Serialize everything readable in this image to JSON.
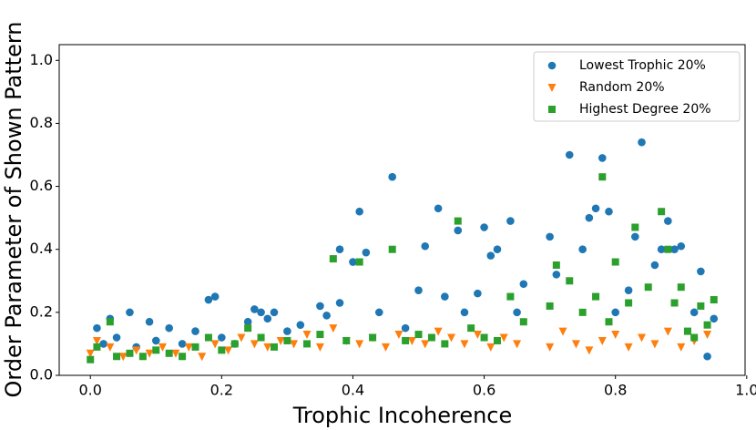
{
  "chart_data": {
    "type": "scatter",
    "x_label": "Trophic Incoherence",
    "y_label": "Order Parameter of Shown Pattern",
    "xlim": [
      -0.0475,
      0.9975
    ],
    "ylim": [
      0,
      1.05
    ],
    "xticks": [
      {
        "value": 0,
        "label": "0.0"
      },
      0.2,
      0.4,
      0.6,
      0.8,
      {
        "value": 1,
        "label": "1.0"
      }
    ],
    "yticks": [
      {
        "value": 0,
        "label": "0.0"
      },
      0.2,
      0.4,
      0.6,
      0.8,
      {
        "value": 1,
        "label": "1.0"
      }
    ],
    "grid": false,
    "legend": "upper right",
    "series": [
      {
        "name": "Lowest Trophic 20%",
        "color": "#1f77b4",
        "marker": "circle",
        "x": [
          0.01,
          0.02,
          0.03,
          0.04,
          0.06,
          0.07,
          0.09,
          0.1,
          0.12,
          0.14,
          0.16,
          0.18,
          0.19,
          0.2,
          0.22,
          0.24,
          0.25,
          0.26,
          0.27,
          0.28,
          0.3,
          0.32,
          0.35,
          0.36,
          0.38,
          0.38,
          0.4,
          0.41,
          0.42,
          0.44,
          0.46,
          0.48,
          0.5,
          0.51,
          0.53,
          0.54,
          0.56,
          0.57,
          0.59,
          0.6,
          0.61,
          0.62,
          0.64,
          0.65,
          0.66,
          0.7,
          0.71,
          0.73,
          0.75,
          0.76,
          0.77,
          0.78,
          0.79,
          0.8,
          0.82,
          0.83,
          0.84,
          0.86,
          0.87,
          0.88,
          0.89,
          0.9,
          0.92,
          0.93,
          0.94,
          0.95
        ],
        "values": [
          0.15,
          0.1,
          0.18,
          0.12,
          0.2,
          0.09,
          0.17,
          0.11,
          0.15,
          0.1,
          0.14,
          0.24,
          0.25,
          0.12,
          0.1,
          0.17,
          0.21,
          0.2,
          0.18,
          0.2,
          0.14,
          0.16,
          0.22,
          0.19,
          0.4,
          0.23,
          0.36,
          0.52,
          0.39,
          0.2,
          0.63,
          0.15,
          0.27,
          0.41,
          0.53,
          0.25,
          0.46,
          0.2,
          0.26,
          0.47,
          0.38,
          0.4,
          0.49,
          0.2,
          0.29,
          0.44,
          0.32,
          0.7,
          0.4,
          0.5,
          0.53,
          0.69,
          0.52,
          0.2,
          0.27,
          0.44,
          0.74,
          0.35,
          0.4,
          0.49,
          0.4,
          0.41,
          0.2,
          0.33,
          0.06,
          0.18
        ]
      },
      {
        "name": "Random 20%",
        "color": "#ff7f0e",
        "marker": "triangle-down",
        "x": [
          0.0,
          0.01,
          0.03,
          0.05,
          0.07,
          0.09,
          0.11,
          0.13,
          0.15,
          0.17,
          0.19,
          0.21,
          0.23,
          0.25,
          0.27,
          0.29,
          0.31,
          0.33,
          0.35,
          0.37,
          0.39,
          0.41,
          0.43,
          0.45,
          0.47,
          0.49,
          0.51,
          0.53,
          0.55,
          0.57,
          0.59,
          0.61,
          0.63,
          0.65,
          0.7,
          0.72,
          0.74,
          0.76,
          0.78,
          0.8,
          0.82,
          0.84,
          0.86,
          0.88,
          0.9,
          0.92,
          0.94
        ],
        "values": [
          0.07,
          0.11,
          0.09,
          0.06,
          0.08,
          0.07,
          0.09,
          0.07,
          0.09,
          0.06,
          0.1,
          0.08,
          0.12,
          0.1,
          0.09,
          0.11,
          0.1,
          0.13,
          0.09,
          0.15,
          0.11,
          0.1,
          0.12,
          0.09,
          0.13,
          0.11,
          0.1,
          0.14,
          0.12,
          0.1,
          0.13,
          0.09,
          0.12,
          0.1,
          0.09,
          0.14,
          0.1,
          0.08,
          0.11,
          0.13,
          0.09,
          0.12,
          0.1,
          0.14,
          0.09,
          0.11,
          0.13
        ]
      },
      {
        "name": "Highest Degree 20%",
        "color": "#2ca02c",
        "marker": "square",
        "x": [
          0.0,
          0.01,
          0.03,
          0.04,
          0.06,
          0.08,
          0.1,
          0.12,
          0.14,
          0.16,
          0.18,
          0.2,
          0.22,
          0.24,
          0.26,
          0.28,
          0.3,
          0.33,
          0.35,
          0.37,
          0.39,
          0.41,
          0.43,
          0.46,
          0.48,
          0.5,
          0.52,
          0.54,
          0.56,
          0.58,
          0.6,
          0.62,
          0.64,
          0.66,
          0.7,
          0.71,
          0.73,
          0.75,
          0.77,
          0.78,
          0.79,
          0.8,
          0.82,
          0.83,
          0.85,
          0.87,
          0.88,
          0.89,
          0.9,
          0.91,
          0.92,
          0.93,
          0.94,
          0.95
        ],
        "values": [
          0.05,
          0.09,
          0.17,
          0.06,
          0.07,
          0.06,
          0.08,
          0.07,
          0.06,
          0.09,
          0.12,
          0.08,
          0.1,
          0.15,
          0.12,
          0.09,
          0.11,
          0.1,
          0.13,
          0.37,
          0.11,
          0.36,
          0.12,
          0.4,
          0.11,
          0.13,
          0.12,
          0.1,
          0.49,
          0.15,
          0.12,
          0.11,
          0.25,
          0.17,
          0.22,
          0.35,
          0.3,
          0.2,
          0.25,
          0.63,
          0.17,
          0.36,
          0.23,
          0.47,
          0.28,
          0.52,
          0.4,
          0.23,
          0.28,
          0.14,
          0.12,
          0.22,
          0.16,
          0.24
        ]
      }
    ]
  }
}
